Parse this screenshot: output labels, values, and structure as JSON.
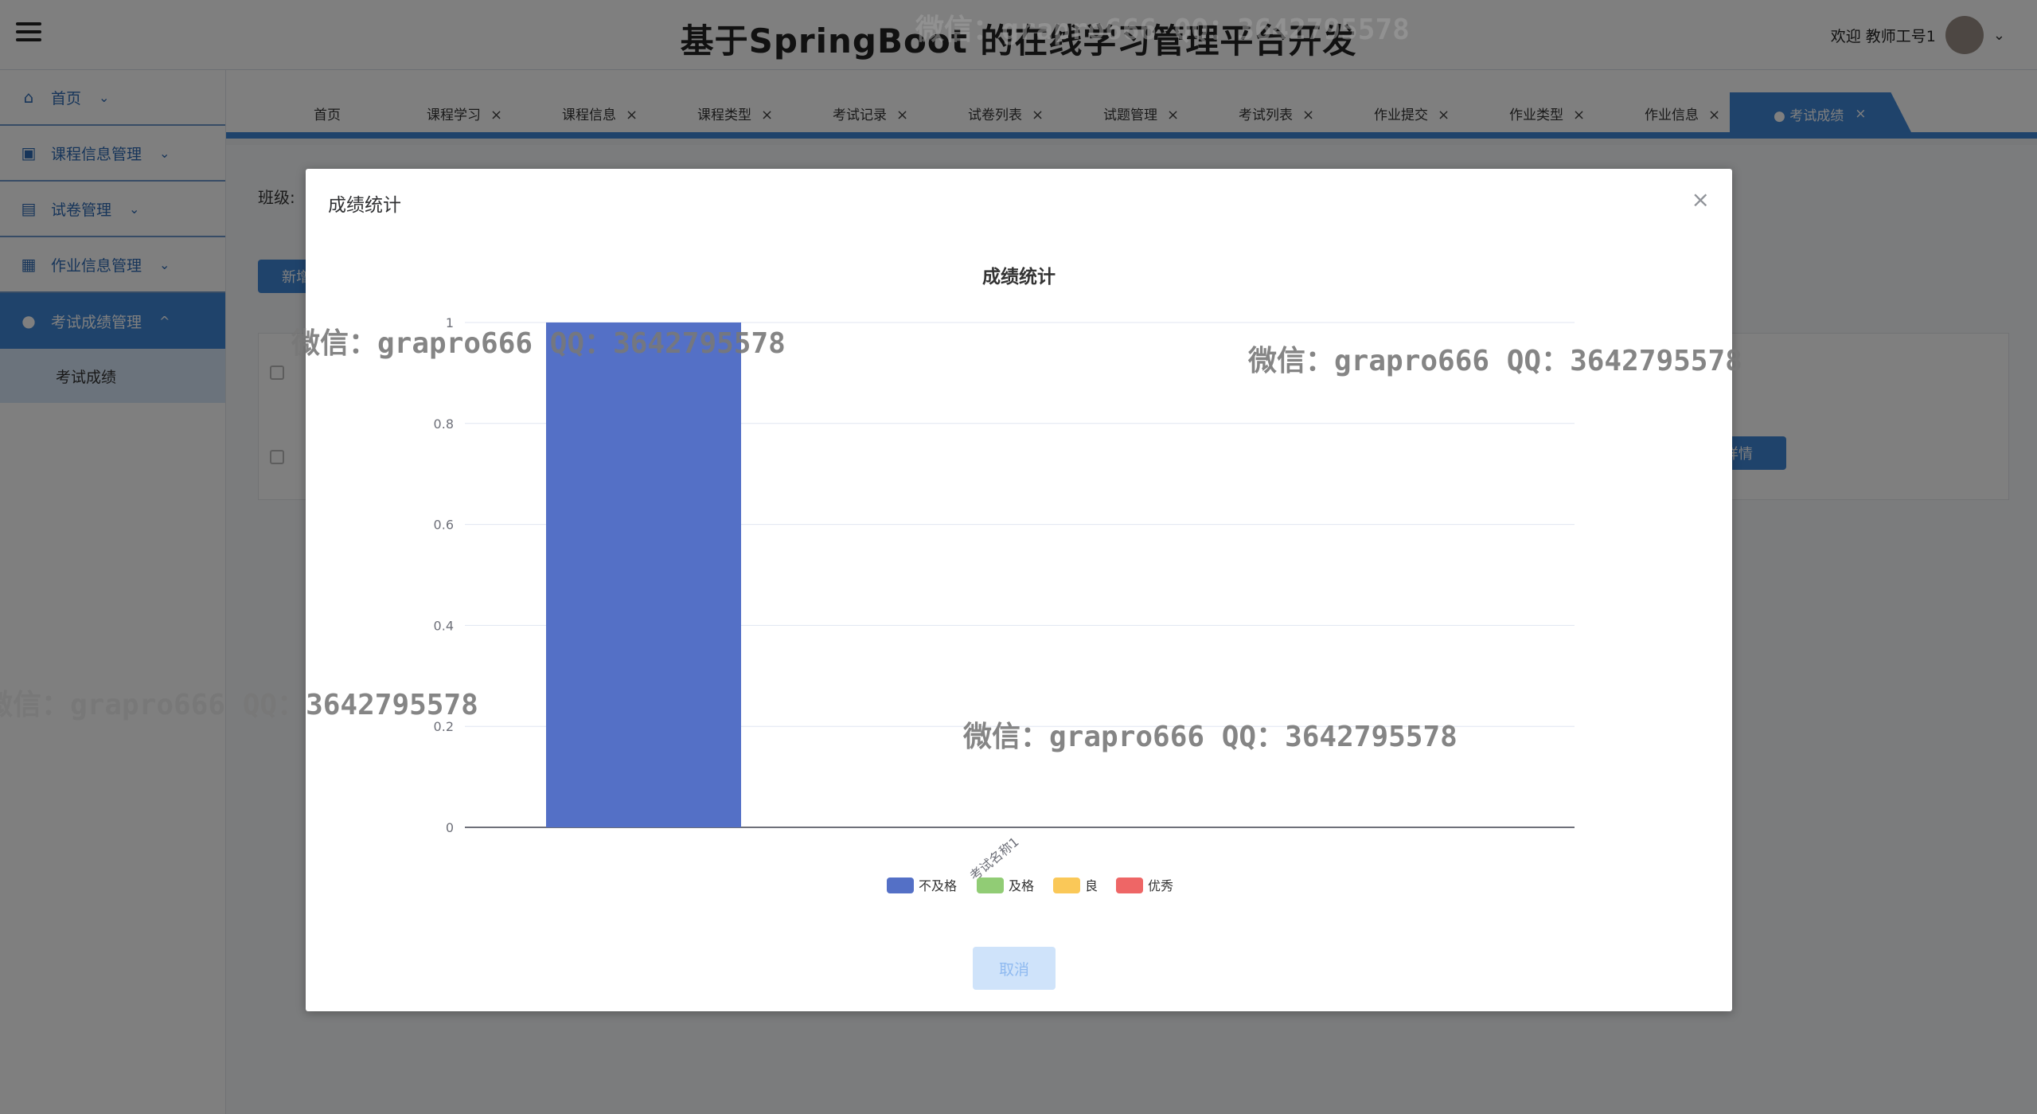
{
  "app": {
    "title": "基于SpringBoot 的在线学习管理平台开发",
    "user_label": "欢迎 教师工号1"
  },
  "sidebar": {
    "items": [
      {
        "label": "首页",
        "icon": "home-icon",
        "arrow": "⌄"
      },
      {
        "label": "课程信息管理",
        "icon": "chart-icon",
        "arrow": "⌄"
      },
      {
        "label": "试卷管理",
        "icon": "paper-icon",
        "arrow": "⌄"
      },
      {
        "label": "作业信息管理",
        "icon": "grid-icon",
        "arrow": "⌄"
      },
      {
        "label": "考试成绩管理",
        "icon": "play-icon",
        "arrow": "^"
      }
    ],
    "sub_item": "考试成绩"
  },
  "tabs": [
    {
      "label": "首页",
      "close": ""
    },
    {
      "label": "课程学习",
      "close": "×"
    },
    {
      "label": "课程信息",
      "close": "×"
    },
    {
      "label": "课程类型",
      "close": "×"
    },
    {
      "label": "考试记录",
      "close": "×"
    },
    {
      "label": "试卷列表",
      "close": "×"
    },
    {
      "label": "试题管理",
      "close": "×"
    },
    {
      "label": "考试列表",
      "close": "×"
    },
    {
      "label": "作业提交",
      "close": "×"
    },
    {
      "label": "作业类型",
      "close": "×"
    },
    {
      "label": "作业信息",
      "close": "×"
    }
  ],
  "active_tab": {
    "label": "● 考试成绩",
    "close": "×"
  },
  "content": {
    "filter_label": "班级:",
    "add_button": "新增",
    "detail_button": "详情"
  },
  "dialog": {
    "title": "成绩统计",
    "close": "×",
    "cancel_label": "取消"
  },
  "chart_data": {
    "type": "bar",
    "title": "成绩统计",
    "categories": [
      "考试名称1"
    ],
    "series": [
      {
        "name": "不及格",
        "values": [
          1
        ],
        "color": "#5470c6"
      },
      {
        "name": "及格",
        "values": [
          0
        ],
        "color": "#91cc75"
      },
      {
        "name": "良",
        "values": [
          0
        ],
        "color": "#fac858"
      },
      {
        "name": "优秀",
        "values": [
          0
        ],
        "color": "#ee6666"
      }
    ],
    "y_ticks": [
      "0",
      "0.2",
      "0.4",
      "0.6",
      "0.8",
      "1"
    ],
    "ylim": [
      0,
      1
    ],
    "grid": true,
    "legend_position": "bottom"
  },
  "watermarks": [
    "微信：grapro666 QQ：3642795578",
    "微信：grapro666 QQ：3642795578",
    "微信：grapro666 QQ：3642795578",
    "微信：grapro666 QQ：3642795578",
    "微信：grapro666 QQ：3642795578"
  ]
}
